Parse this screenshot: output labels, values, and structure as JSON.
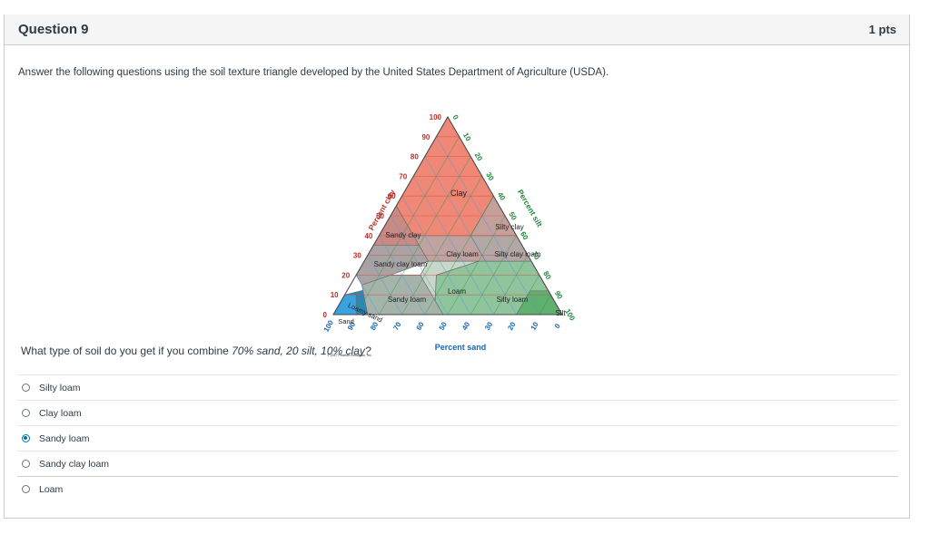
{
  "question": {
    "title": "Question 9",
    "points": "1 pts",
    "prompt": "Answer the following questions using the soil texture triangle developed by the United States Department of Agriculture (USDA).",
    "text_prefix": "What type of soil do you get if you combine ",
    "text_emph": "70% sand, 20 silt, 10% clay?",
    "selected_index": 2
  },
  "answers": [
    {
      "label": "Silty loam"
    },
    {
      "label": "Clay loam"
    },
    {
      "label": "Sandy loam"
    },
    {
      "label": "Sandy clay loam"
    },
    {
      "label": "Loam"
    }
  ],
  "triangle": {
    "clay_axis_label": "Percent clay",
    "silt_axis_label": "Percent silt",
    "sand_axis_label": "Percent sand",
    "clay_ticks": [
      "0",
      "10",
      "20",
      "30",
      "40",
      "50",
      "60",
      "70",
      "80",
      "90",
      "100"
    ],
    "silt_ticks": [
      "0",
      "10",
      "20",
      "30",
      "40",
      "50",
      "60",
      "70",
      "80",
      "90",
      "100"
    ],
    "sand_ticks": [
      "100",
      "90",
      "80",
      "70",
      "60",
      "50",
      "40",
      "30",
      "20",
      "10",
      "0"
    ],
    "regions": {
      "clay": "Clay",
      "sandy_clay": "Sandy clay",
      "silty_clay": "Silty clay",
      "clay_loam": "Clay loam",
      "sandy_clay_loam": "Sandy clay loam",
      "silty_clay_loam": "Silty clay loam",
      "loam": "Loam",
      "sandy_loam": "Sandy loam",
      "silty_loam": "Silty loam",
      "silt": "Silt",
      "loamy_sand": "Loamy sand",
      "sand": "Sand"
    },
    "copyright": "© 2017 Pearson Education, Inc.",
    "colors": {
      "clay": "#f08877",
      "sandy_clay": "#c98a86",
      "silty_clay": "#c5a09b",
      "clay_loam": "#bfa3a1",
      "sandy_clay_loam": "#a9a3a4",
      "silty_clay_loam": "#b3a7a6",
      "loam": "#c9d7c8",
      "sandy_loam": "#a6b3ab",
      "silty_loam": "#8fc49c",
      "silt": "#5faf6e",
      "loamy_sand": "#2f86b6",
      "sand": "#39a3e0",
      "grid_blue": "#4a9fd6",
      "grid_red": "#d84a37",
      "grid_green": "#2f9a4a",
      "label_red": "#b8302a",
      "label_green": "#1f8a3b",
      "label_blue": "#1566b5"
    }
  }
}
